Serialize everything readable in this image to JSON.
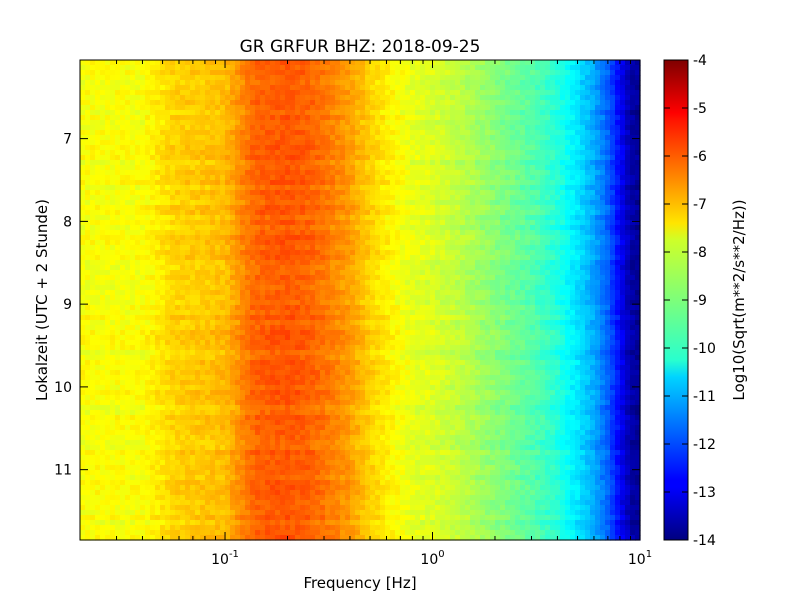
{
  "chart_data": {
    "type": "heatmap",
    "title": "GR GRFUR BHZ: 2018-09-25",
    "xlabel": "Frequency [Hz]",
    "ylabel": "Lokalzeit (UTC + 2 Stunde)",
    "x_scale": "log",
    "xlim": [
      0.02,
      10
    ],
    "ylim": [
      11.85,
      6.05
    ],
    "x_ticks": [
      {
        "base": "10",
        "exp": "-1",
        "value": 0.1
      },
      {
        "base": "10",
        "exp": "0",
        "value": 1
      },
      {
        "base": "10",
        "exp": "1",
        "value": 10
      }
    ],
    "y_ticks": [
      "7",
      "8",
      "9",
      "10",
      "11"
    ],
    "y_tick_values": [
      7,
      8,
      9,
      10,
      11
    ],
    "colorbar": {
      "label": "Log10(Sqrt(m**2/s**2/Hz))",
      "range": [
        -14,
        -4
      ],
      "ticks": [
        "-4",
        "-5",
        "-6",
        "-7",
        "-8",
        "-9",
        "-10",
        "-11",
        "-12",
        "-13",
        "-14"
      ],
      "tick_values": [
        -4,
        -5,
        -6,
        -7,
        -8,
        -9,
        -10,
        -11,
        -12,
        -13,
        -14
      ],
      "colormap": "jet"
    },
    "frequency_profile": {
      "frequency_hz": [
        0.02,
        0.04,
        0.058,
        0.08,
        0.1,
        0.135,
        0.15,
        0.2,
        0.25,
        0.3,
        0.4,
        0.5,
        0.6,
        0.8,
        1.0,
        1.5,
        2.0,
        3.0,
        4.0,
        5.0,
        6.0,
        7.0,
        8.0,
        9.0,
        10.0
      ],
      "log10_amplitude": [
        -7.8,
        -7.8,
        -7.3,
        -7.2,
        -7.1,
        -6.3,
        -6.2,
        -6.1,
        -6.2,
        -6.4,
        -6.8,
        -7.3,
        -7.6,
        -8.0,
        -8.1,
        -8.5,
        -8.9,
        -9.4,
        -9.9,
        -10.5,
        -11.1,
        -11.8,
        -12.8,
        -13.6,
        -13.8
      ]
    }
  }
}
